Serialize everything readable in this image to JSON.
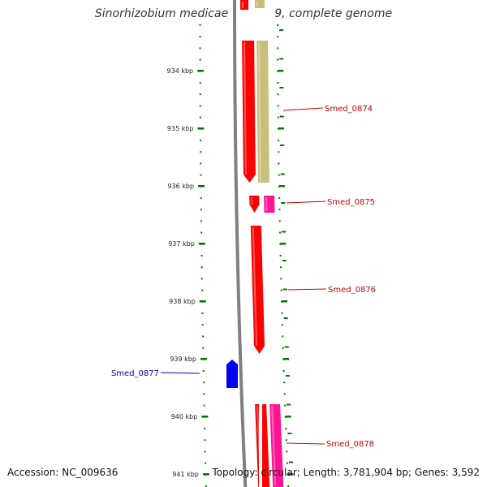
{
  "title": "Sinorhizobium medicae WSM419, complete genome",
  "footer": {
    "accession": "Accession: NC_009636",
    "summary": "Topology: circular; Length: 3,781,904 bp; Genes: 3,592"
  },
  "axis": {
    "unit": "kbp",
    "ticks": [
      "934 kbp",
      "935 kbp",
      "936 kbp",
      "937 kbp",
      "938 kbp",
      "939 kbp",
      "940 kbp",
      "941 kbp"
    ]
  },
  "colors": {
    "forward_gene": "#ff0000",
    "forward_rna": "#ff1493",
    "reverse_gene": "#0000ff",
    "olive_feature": "#c8bf7a",
    "backbone": "#808080",
    "tick_green": "#007700",
    "label_red": "#cc0000",
    "label_blue": "#0000cc"
  },
  "genes": [
    {
      "name": "Smed_0874",
      "strand": "forward"
    },
    {
      "name": "Smed_0875",
      "strand": "forward"
    },
    {
      "name": "Smed_0876",
      "strand": "forward"
    },
    {
      "name": "Smed_0877",
      "strand": "reverse"
    },
    {
      "name": "Smed_0878",
      "strand": "forward"
    }
  ]
}
